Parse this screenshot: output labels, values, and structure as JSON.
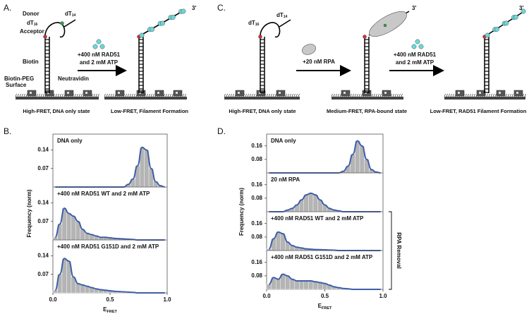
{
  "panel_a": {
    "label": "A.",
    "donor": "Donor",
    "dt16": {
      "base": "dT",
      "sub": "16"
    },
    "dt14": {
      "base": "dT",
      "sub": "14"
    },
    "acceptor": "Acceptor",
    "biotin": "Biotin",
    "surface": [
      "Biotin-PEG",
      "Surface"
    ],
    "neutravidin": "Neutravidin",
    "condition": [
      "+400 nM RAD51",
      "and 2 mM ATP"
    ],
    "end_label": "3'",
    "state_1": "High-FRET, DNA only state",
    "state_2": "Low-FRET, Filament Formation"
  },
  "panel_c": {
    "label": "C.",
    "dt16": {
      "base": "dT",
      "sub": "16"
    },
    "dt14": {
      "base": "dT",
      "sub": "14"
    },
    "condition_1": "+20 nM RPA",
    "condition_2": [
      "+400 nM RAD51",
      "and 2 mM ATP"
    ],
    "end_label_1": "3'",
    "end_label_2": "3'",
    "state_1": "High-FRET, DNA only state",
    "state_2": "Medium-FRET, RPA-bound state",
    "state_3": "Low-FRET, RAD51 Filament Formation"
  },
  "chart_data": [
    {
      "type": "histogram",
      "panel_label": "B.",
      "ylabel": "Frequency (norm)",
      "xlabel": {
        "base": "E",
        "sub": "FRET"
      },
      "bar_color": "#b4b4b4",
      "fit_color": "#3f5ea8",
      "bins": [
        0,
        0.04,
        0.08,
        0.12,
        0.16,
        0.2,
        0.24,
        0.28,
        0.32,
        0.36,
        0.4,
        0.44,
        0.48,
        0.52,
        0.56,
        0.6,
        0.64,
        0.68,
        0.72,
        0.76,
        0.8,
        0.84,
        0.88,
        0.92,
        0.96,
        1.0
      ],
      "xlim": [
        0,
        1
      ],
      "xticks": [
        {
          "value": 0,
          "label": "0.0"
        },
        0.5,
        {
          "value": 1,
          "label": "1.0"
        }
      ],
      "ylim": [
        0,
        0.2
      ],
      "yticks": [
        0.07,
        0.14
      ],
      "series": [
        {
          "name": "DNA only",
          "values": [
            0,
            0,
            0,
            0,
            0,
            0,
            0,
            0,
            0,
            0,
            0,
            0,
            0,
            0,
            0,
            0,
            0.01,
            0.03,
            0.08,
            0.15,
            0.14,
            0.07,
            0.02,
            0.005,
            0
          ]
        },
        {
          "name": "+400 nM RAD51 WT and 2 mM ATP",
          "values": [
            0.01,
            0.06,
            0.12,
            0.1,
            0.09,
            0.07,
            0.04,
            0.025,
            0.02,
            0.015,
            0.01,
            0.01,
            0.008,
            0.006,
            0.005,
            0.004,
            0.003,
            0.002,
            0,
            0,
            0,
            0,
            0,
            0,
            0
          ]
        },
        {
          "name": "+400 nM RAD51 G151D and 2 mM ATP",
          "values": [
            0.01,
            0.07,
            0.13,
            0.12,
            0.06,
            0.035,
            0.03,
            0.025,
            0.02,
            0.015,
            0.012,
            0.01,
            0.008,
            0.006,
            0.005,
            0.004,
            0.003,
            0.002,
            0,
            0,
            0,
            0,
            0,
            0,
            0
          ]
        }
      ]
    },
    {
      "type": "histogram",
      "panel_label": "D.",
      "ylabel": "Frequency (norm)",
      "xlabel": {
        "base": "E",
        "sub": "FRET"
      },
      "bracket_label": "RPA Removal",
      "bar_color": "#b4b4b4",
      "fit_color": "#3f5ea8",
      "bins": [
        0,
        0.04,
        0.08,
        0.12,
        0.16,
        0.2,
        0.24,
        0.28,
        0.32,
        0.36,
        0.4,
        0.44,
        0.48,
        0.52,
        0.56,
        0.6,
        0.64,
        0.68,
        0.72,
        0.76,
        0.8,
        0.84,
        0.88,
        0.92,
        0.96,
        1.0
      ],
      "xlim": [
        0,
        1
      ],
      "xticks": [
        {
          "value": 0,
          "label": "0.0"
        },
        0.5,
        {
          "value": 1,
          "label": "1.0"
        }
      ],
      "ylim": [
        0,
        0.23
      ],
      "yticks": [
        0.08,
        0.16
      ],
      "series": [
        {
          "name": "DNA only",
          "values": [
            0,
            0,
            0,
            0,
            0,
            0,
            0,
            0,
            0,
            0,
            0,
            0,
            0,
            0,
            0,
            0,
            0.01,
            0.04,
            0.11,
            0.19,
            0.16,
            0.08,
            0.02,
            0.005,
            0
          ]
        },
        {
          "name": "20 nM RPA",
          "values": [
            0,
            0,
            0,
            0,
            0.01,
            0.02,
            0.04,
            0.07,
            0.1,
            0.11,
            0.1,
            0.07,
            0.04,
            0.02,
            0.01,
            0.005,
            0,
            0,
            0,
            0,
            0,
            0,
            0,
            0,
            0
          ]
        },
        {
          "name": "+400 nM RAD51 WT and 2 mM ATP",
          "values": [
            0.01,
            0.07,
            0.11,
            0.1,
            0.05,
            0.03,
            0.02,
            0.015,
            0.01,
            0.008,
            0.006,
            0.005,
            0.004,
            0.003,
            0.002,
            0,
            0,
            0,
            0,
            0,
            0,
            0,
            0,
            0,
            0
          ]
        },
        {
          "name": "+400 nM RAD51 G151D and 2 mM ATP",
          "values": [
            0.03,
            0.07,
            0.06,
            0.09,
            0.08,
            0.06,
            0.05,
            0.05,
            0.05,
            0.05,
            0.045,
            0.04,
            0.035,
            0.025,
            0.015,
            0.01,
            0.005,
            0.003,
            0,
            0,
            0,
            0,
            0,
            0,
            0
          ]
        }
      ]
    }
  ]
}
